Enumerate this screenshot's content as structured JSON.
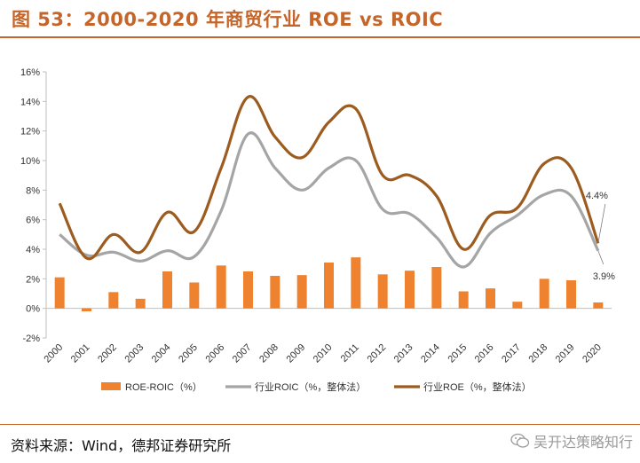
{
  "header": {
    "title": "图 53：2000-2020 年商贸行业 ROE vs ROIC"
  },
  "footer": {
    "source": "资料来源：Wind，德邦证券研究所",
    "watermark": "吴开达策略知行"
  },
  "colors": {
    "accent": "#c5652a",
    "roe_roic_bar": "#ee822f",
    "roic_line": "#a5a5a5",
    "roe_line": "#9c5b1f"
  },
  "chart_data": {
    "type": "bar+line",
    "title": "",
    "categories": [
      "2000",
      "2001",
      "2002",
      "2003",
      "2004",
      "2005",
      "2006",
      "2007",
      "2008",
      "2009",
      "2010",
      "2011",
      "2012",
      "2013",
      "2014",
      "2015",
      "2016",
      "2017",
      "2018",
      "2019",
      "2020"
    ],
    "y_ticks": [
      "-2%",
      "0%",
      "2%",
      "4%",
      "6%",
      "8%",
      "10%",
      "12%",
      "14%",
      "16%"
    ],
    "ylim": [
      -2,
      16
    ],
    "series": [
      {
        "name": "ROE-ROIC（%）",
        "kind": "bar",
        "values": [
          2.1,
          -0.2,
          1.1,
          0.65,
          2.5,
          1.75,
          2.9,
          2.5,
          2.2,
          2.25,
          3.1,
          3.45,
          2.3,
          2.55,
          2.8,
          1.15,
          1.35,
          0.45,
          2.0,
          1.9,
          0.4
        ]
      },
      {
        "name": "行业ROIC（%，整体法）",
        "kind": "line",
        "values": [
          5.0,
          3.6,
          3.8,
          3.2,
          3.9,
          3.5,
          6.6,
          11.8,
          9.5,
          8.0,
          9.5,
          10.0,
          6.7,
          6.4,
          4.8,
          2.8,
          5.1,
          6.3,
          7.7,
          7.6,
          3.9
        ]
      },
      {
        "name": "行业ROE（%，整体法）",
        "kind": "line",
        "values": [
          7.1,
          3.4,
          5.0,
          3.8,
          6.5,
          5.2,
          9.5,
          14.3,
          11.6,
          10.2,
          12.6,
          13.5,
          9.0,
          9.0,
          7.6,
          4.0,
          6.3,
          6.8,
          9.8,
          9.5,
          4.4
        ]
      }
    ],
    "annotations": [
      {
        "text": "4.4%",
        "series": "行业ROE（%，整体法）",
        "category": "2020"
      },
      {
        "text": "3.9%",
        "series": "行业ROIC（%，整体法）",
        "category": "2020"
      }
    ]
  }
}
